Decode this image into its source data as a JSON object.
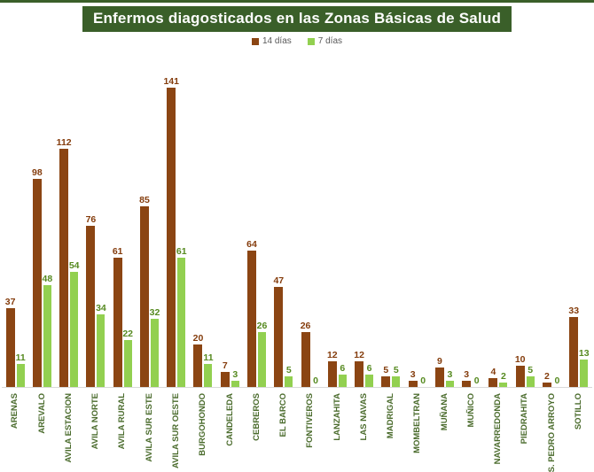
{
  "title": "Enfermos diagosticados en las Zonas Básicas de Salud",
  "colors": {
    "title_background": "#3A5F29",
    "title_text": "#FFFFFF",
    "top_line": "#3A5F29",
    "axis_line": "#D9D9D9",
    "legend_text": "#595959",
    "category_label": "#4A6B2C",
    "value_label_14dias": "#843C0C",
    "value_label_7dias": "#568A20"
  },
  "chart_data": {
    "type": "bar",
    "title": "Enfermos diagosticados en las Zonas Básicas de Salud",
    "xlabel": "",
    "ylabel": "",
    "ylim": [
      0,
      150
    ],
    "grid": false,
    "legend_position": "top",
    "categories": [
      "ARENAS",
      "AREVALO",
      "AVILA ESTACION",
      "AVILA NORTE",
      "AVILA RURAL",
      "AVILA SUR ESTE",
      "AVILA SUR OESTE",
      "BURGOHONDO",
      "CANDELEDA",
      "CEBREROS",
      "EL BARCO",
      "FONTIVEROS",
      "LANZAHITA",
      "LAS NAVAS",
      "MADRIGAL",
      "MOMBELTRAN",
      "MUÑANA",
      "MUÑICO",
      "NAVARREDONDA",
      "PIEDRAHITA",
      "S. PEDRO ARROYO",
      "SOTILLO"
    ],
    "series": [
      {
        "name": "14 días",
        "color": "#8B4513",
        "values": [
          37,
          98,
          112,
          76,
          61,
          85,
          141,
          20,
          7,
          64,
          47,
          26,
          12,
          12,
          5,
          3,
          9,
          3,
          4,
          10,
          2,
          33
        ]
      },
      {
        "name": "7 días",
        "color": "#92D050",
        "values": [
          11,
          48,
          54,
          34,
          22,
          32,
          61,
          11,
          3,
          26,
          5,
          0,
          6,
          6,
          5,
          0,
          3,
          0,
          2,
          5,
          0,
          13
        ]
      }
    ]
  }
}
